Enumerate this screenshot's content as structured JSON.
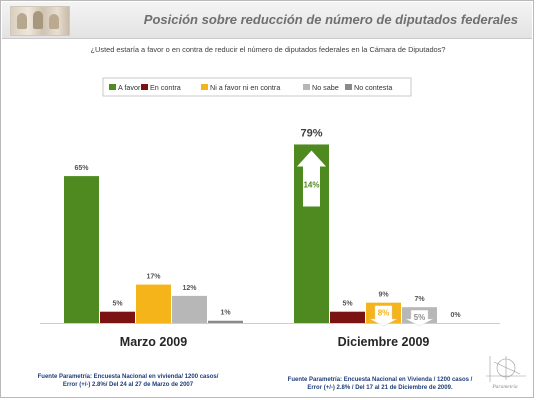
{
  "title": "Posición sobre reducción de número de diputados federales",
  "question": "¿Usted estaría a favor o en contra de reducir el número de diputados federales en la Cámara de Diputados?",
  "chart_data": {
    "type": "bar",
    "categories": [
      "Marzo 2009",
      "Diciembre 2009"
    ],
    "series": [
      {
        "name": "A favor",
        "color": "#4e8a1f",
        "values": [
          65,
          79
        ],
        "labels": [
          "65%",
          "79%"
        ]
      },
      {
        "name": "En contra",
        "color": "#7b1313",
        "values": [
          5,
          5
        ],
        "labels": [
          "5%",
          "5%"
        ]
      },
      {
        "name": "Ni a favor ni en contra",
        "color": "#f4b41a",
        "values": [
          17,
          9
        ],
        "labels": [
          "17%",
          "9%"
        ]
      },
      {
        "name": "No sabe",
        "color": "#b7b7b7",
        "values": [
          12,
          7
        ],
        "labels": [
          "12%",
          "7%"
        ]
      },
      {
        "name": "No contesta",
        "color": "#8a8a8a",
        "values": [
          1,
          0
        ],
        "labels": [
          "1%",
          "0%"
        ]
      }
    ],
    "annotations": [
      {
        "category": "Diciembre 2009",
        "series": "A favor",
        "text": "14%",
        "shape": "up-arrow"
      },
      {
        "category": "Diciembre 2009",
        "series": "Ni a favor ni en contra",
        "text": "8%",
        "shape": "down-arrow"
      },
      {
        "category": "Diciembre 2009",
        "series": "No sabe",
        "text": "5%",
        "shape": "down-arrow"
      }
    ],
    "legend_position": "top-center",
    "grid": false
  },
  "footers": [
    {
      "lines": [
        "Fuente Parametría: Encuesta Nacional en vivienda/ 1200 casos/",
        "Error (+/-) 2.8%/  Del 24 al 27 de Marzo de 2007"
      ]
    },
    {
      "lines": [
        "Fuente Parametría: Encuesta Nacional en Vivienda / 1200 casos /",
        "Error (+/-) 2.8% /  Del 17 al 21 de Diciembre de 2009."
      ]
    }
  ],
  "logo_text": "Parametría"
}
